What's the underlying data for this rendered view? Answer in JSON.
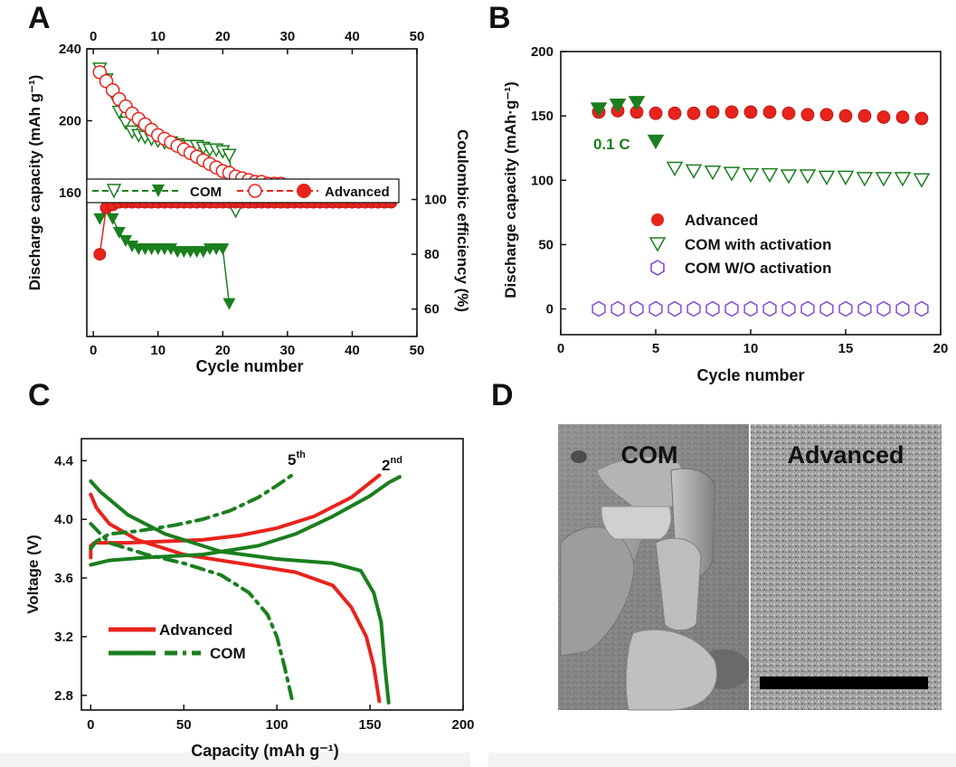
{
  "panels": {
    "A": "A",
    "B": "B",
    "C": "C",
    "D": "D"
  },
  "colors": {
    "advanced": "#e8231c",
    "com": "#1a7f1e",
    "wo": "#7a3fd1"
  },
  "chart_data": [
    {
      "panel": "A",
      "type": "scatter",
      "xlabel": "Cycle number",
      "ylabel": "Discharge capacity (mAh g⁻¹)",
      "y2label": "Coulombic efficiency (%)",
      "xlim": [
        -1,
        50
      ],
      "x_ticks": [
        0,
        10,
        20,
        30,
        40,
        50
      ],
      "top_ticks": [
        0,
        10,
        20,
        30,
        40,
        50
      ],
      "ylim": [
        80,
        240
      ],
      "y_ticks": [
        160,
        200,
        240
      ],
      "y2lim": [
        50,
        155
      ],
      "y2_ticks": [
        60,
        80,
        100
      ],
      "legend": [
        "COM",
        "Advanced"
      ],
      "legend_position": "middle",
      "series": [
        {
          "name": "COM",
          "kind": "capacity",
          "x": [
            1,
            2,
            3,
            4,
            5,
            6,
            7,
            8,
            9,
            10,
            11,
            12,
            13,
            14,
            15,
            16,
            17,
            18,
            19,
            20,
            21,
            22
          ],
          "values": [
            229,
            223,
            215,
            205,
            199,
            194,
            192,
            191,
            190,
            189,
            188,
            188,
            187,
            186,
            186,
            186,
            185,
            184,
            184,
            183,
            181,
            150
          ]
        },
        {
          "name": "Advanced",
          "kind": "capacity",
          "x": [
            1,
            2,
            3,
            4,
            5,
            6,
            7,
            8,
            9,
            10,
            11,
            12,
            13,
            14,
            15,
            16,
            17,
            18,
            19,
            20,
            21,
            22,
            23,
            24,
            25,
            26,
            27,
            28,
            29,
            30,
            31,
            32,
            33,
            34,
            35,
            36,
            37,
            38,
            39,
            40,
            41,
            42,
            43,
            44,
            45,
            46
          ],
          "values": [
            227,
            222,
            217,
            212,
            208,
            204,
            201,
            198,
            195,
            192,
            190,
            188,
            186,
            184,
            182,
            180,
            178,
            176,
            174,
            172,
            171,
            169,
            168,
            167,
            166,
            166,
            165,
            165,
            165,
            164,
            164,
            164,
            164,
            163,
            163,
            163,
            163,
            162,
            162,
            161,
            160,
            160,
            160,
            159,
            160,
            160
          ]
        },
        {
          "name": "COM",
          "kind": "efficiency",
          "x": [
            1,
            2,
            3,
            4,
            5,
            6,
            7,
            8,
            9,
            10,
            11,
            12,
            13,
            14,
            15,
            16,
            17,
            18,
            19,
            20,
            21
          ],
          "values": [
            93,
            98,
            93,
            88,
            85,
            83,
            82,
            82,
            82,
            82,
            82,
            82,
            81,
            81,
            81,
            81,
            81,
            82,
            82,
            82,
            62
          ]
        },
        {
          "name": "Advanced",
          "kind": "efficiency",
          "x": [
            1,
            2,
            3,
            4,
            5,
            6,
            7,
            8,
            9,
            10,
            11,
            12,
            13,
            14,
            15,
            16,
            17,
            18,
            19,
            20,
            21,
            22,
            23,
            24,
            25,
            26,
            27,
            28,
            29,
            30,
            31,
            32,
            33,
            34,
            35,
            36,
            37,
            38,
            39,
            40,
            41,
            42,
            43,
            44,
            45,
            46
          ],
          "values": [
            80,
            97,
            98,
            99,
            99,
            99,
            99,
            99,
            99,
            99,
            99,
            99,
            99,
            99,
            99,
            99,
            99,
            99,
            99,
            99,
            99,
            99,
            99,
            99,
            99,
            99,
            99,
            99,
            99,
            99,
            99,
            99,
            99,
            99,
            99,
            99,
            99,
            99,
            99,
            99,
            99,
            99,
            99,
            99,
            99,
            99
          ]
        }
      ]
    },
    {
      "panel": "B",
      "type": "scatter",
      "xlabel": "Cycle number",
      "ylabel": "Discharge capacity  (mAh·g⁻¹)",
      "xlim": [
        0,
        20
      ],
      "x_ticks": [
        0,
        5,
        10,
        15,
        20
      ],
      "ylim": [
        -20,
        200
      ],
      "y_ticks": [
        0,
        50,
        100,
        150,
        200
      ],
      "annotation": "0.1 C",
      "legend": [
        "Advanced",
        "COM with activation",
        "COM W/O activation"
      ],
      "legend_position": "center-left",
      "series": [
        {
          "name": "Advanced",
          "x": [
            2,
            3,
            4,
            5,
            6,
            7,
            8,
            9,
            10,
            11,
            12,
            13,
            14,
            15,
            16,
            17,
            18,
            19
          ],
          "values": [
            153,
            154,
            153,
            152,
            152,
            152,
            153,
            153,
            153,
            153,
            152,
            151,
            151,
            150,
            150,
            149,
            149,
            148
          ]
        },
        {
          "name": "COM with activation",
          "x": [
            2,
            3,
            4,
            5,
            6,
            7,
            8,
            9,
            10,
            11,
            12,
            13,
            14,
            15,
            16,
            17,
            18,
            19
          ],
          "values": [
            155,
            158,
            160,
            130,
            109,
            107,
            106,
            105,
            104,
            104,
            103,
            103,
            102,
            102,
            101,
            101,
            101,
            100
          ]
        },
        {
          "name": "COM W/O activation",
          "x": [
            2,
            3,
            4,
            5,
            6,
            7,
            8,
            9,
            10,
            11,
            12,
            13,
            14,
            15,
            16,
            17,
            18,
            19
          ],
          "values": [
            0,
            0,
            0,
            0,
            0,
            0,
            0,
            0,
            0,
            0,
            0,
            0,
            0,
            0,
            0,
            0,
            0,
            0
          ]
        }
      ]
    },
    {
      "panel": "C",
      "type": "line",
      "xlabel": "Capacity (mAh g⁻¹)",
      "ylabel": "Voltage (V)",
      "xlim": [
        -5,
        200
      ],
      "x_ticks": [
        0,
        50,
        100,
        150,
        200
      ],
      "ylim": [
        2.7,
        4.55
      ],
      "y_ticks": [
        2.8,
        3.2,
        3.6,
        4.0,
        4.4
      ],
      "annotations": [
        {
          "base": "5",
          "sup": "th"
        },
        {
          "base": "2",
          "sup": "nd"
        }
      ],
      "legend": [
        "Advanced",
        "COM"
      ],
      "legend_position": "bottom-left",
      "series": [
        {
          "name": "Advanced",
          "curve": "2nd charge",
          "points": [
            [
              0,
              3.74
            ],
            [
              0,
              3.82
            ],
            [
              2,
              3.84
            ],
            [
              20,
              3.84
            ],
            [
              40,
              3.85
            ],
            [
              60,
              3.86
            ],
            [
              80,
              3.89
            ],
            [
              100,
              3.94
            ],
            [
              120,
              4.02
            ],
            [
              140,
              4.15
            ],
            [
              155,
              4.3
            ]
          ]
        },
        {
          "name": "Advanced",
          "curve": "2nd discharge",
          "points": [
            [
              0,
              4.17
            ],
            [
              3,
              4.08
            ],
            [
              10,
              3.97
            ],
            [
              25,
              3.86
            ],
            [
              50,
              3.76
            ],
            [
              80,
              3.7
            ],
            [
              110,
              3.64
            ],
            [
              130,
              3.55
            ],
            [
              140,
              3.4
            ],
            [
              148,
              3.2
            ],
            [
              152,
              3.0
            ],
            [
              155,
              2.76
            ]
          ]
        },
        {
          "name": "COM",
          "curve": "2nd charge",
          "points": [
            [
              0,
              3.69
            ],
            [
              10,
              3.72
            ],
            [
              30,
              3.74
            ],
            [
              60,
              3.76
            ],
            [
              90,
              3.82
            ],
            [
              110,
              3.9
            ],
            [
              130,
              4.02
            ],
            [
              150,
              4.16
            ],
            [
              160,
              4.25
            ],
            [
              166,
              4.29
            ]
          ]
        },
        {
          "name": "COM",
          "curve": "2nd discharge",
          "points": [
            [
              0,
              4.26
            ],
            [
              5,
              4.19
            ],
            [
              20,
              4.03
            ],
            [
              40,
              3.9
            ],
            [
              70,
              3.78
            ],
            [
              100,
              3.73
            ],
            [
              130,
              3.7
            ],
            [
              145,
              3.65
            ],
            [
              152,
              3.5
            ],
            [
              156,
              3.3
            ],
            [
              158,
              3.0
            ],
            [
              160,
              2.75
            ]
          ]
        },
        {
          "name": "COM",
          "curve": "5th charge",
          "points": [
            [
              0,
              3.8
            ],
            [
              3,
              3.85
            ],
            [
              10,
              3.9
            ],
            [
              25,
              3.92
            ],
            [
              45,
              3.96
            ],
            [
              60,
              4.0
            ],
            [
              75,
              4.06
            ],
            [
              90,
              4.15
            ],
            [
              100,
              4.23
            ],
            [
              108,
              4.3
            ]
          ]
        },
        {
          "name": "COM",
          "curve": "5th discharge",
          "points": [
            [
              0,
              3.97
            ],
            [
              10,
              3.84
            ],
            [
              30,
              3.76
            ],
            [
              50,
              3.7
            ],
            [
              70,
              3.62
            ],
            [
              85,
              3.5
            ],
            [
              95,
              3.35
            ],
            [
              100,
              3.2
            ],
            [
              104,
              3.0
            ],
            [
              108,
              2.78
            ]
          ]
        }
      ]
    }
  ],
  "sem": {
    "left_label": "COM",
    "right_label": "Advanced"
  }
}
